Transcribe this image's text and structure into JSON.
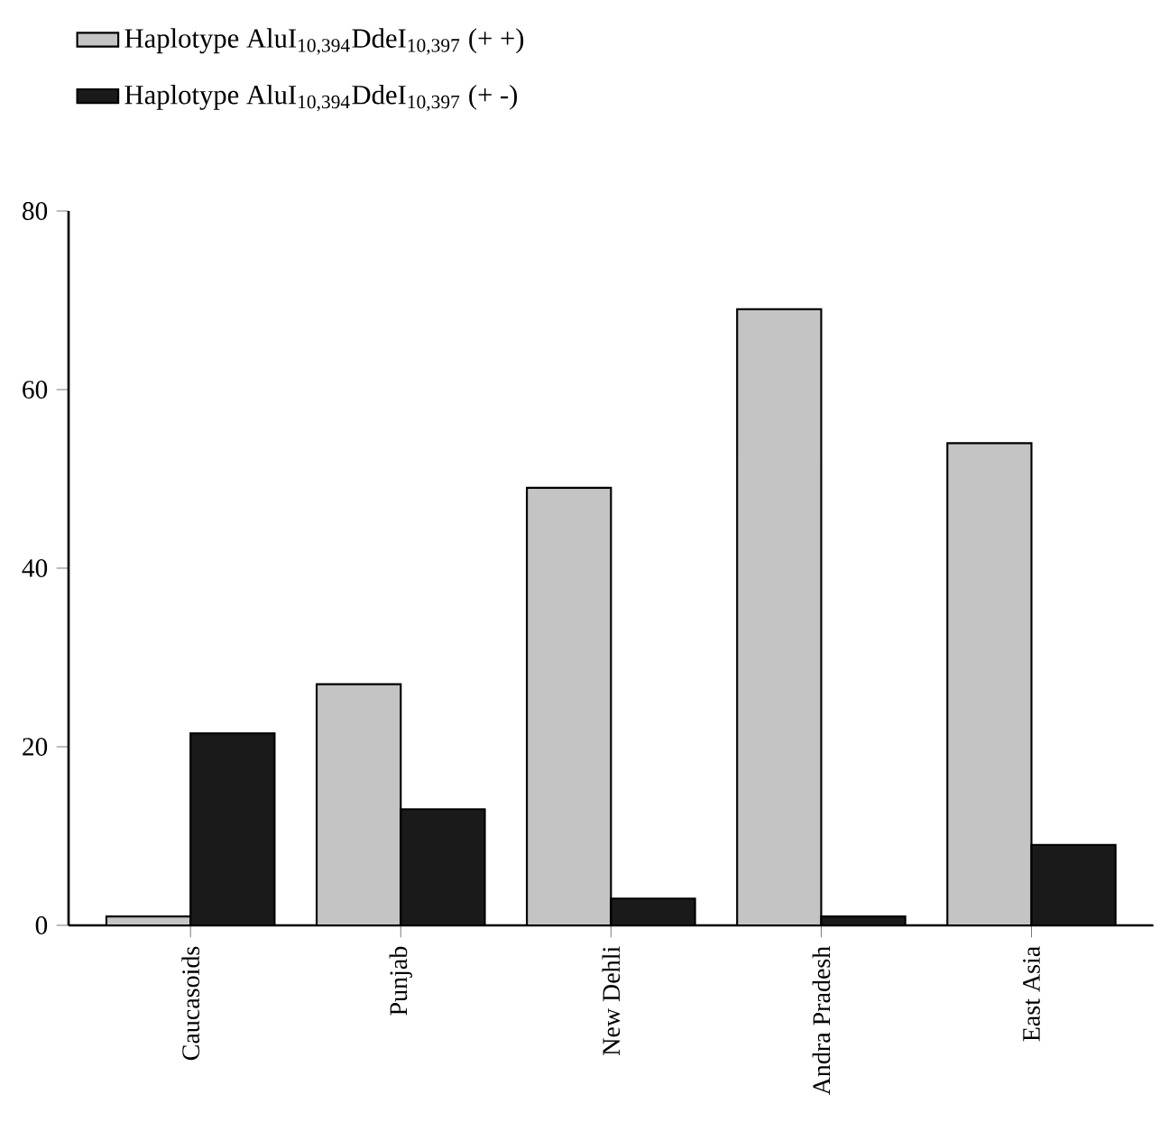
{
  "chart_data": {
    "type": "bar",
    "categories": [
      "Caucasoids",
      "Punjab",
      "New Dehli",
      "Andra Pradesh",
      "East Asia"
    ],
    "series": [
      {
        "name": "Haplotype AluI$_{10,394}$DdeI$_{10,397}$ (+ +)",
        "color": "#c4c4c4",
        "values": [
          1,
          27,
          49,
          69,
          54
        ]
      },
      {
        "name": "Haplotype AluI$_{10,394}$DdeI$_{10,397}$ (+ -)",
        "color": "#1a1a1a",
        "values": [
          21.5,
          13,
          3,
          1,
          9
        ]
      }
    ],
    "ylim": [
      0,
      80
    ],
    "yticks": [
      0,
      20,
      40,
      60,
      80
    ],
    "grid": false,
    "legend": "top left"
  }
}
